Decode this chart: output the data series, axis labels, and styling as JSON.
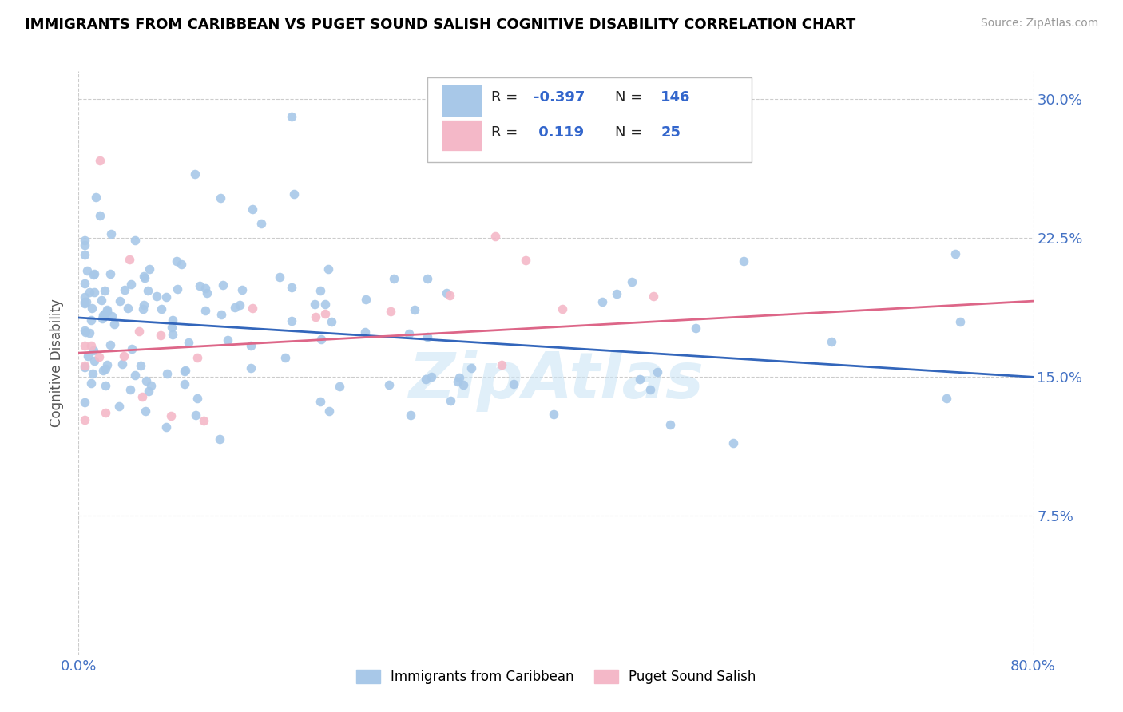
{
  "title": "IMMIGRANTS FROM CARIBBEAN VS PUGET SOUND SALISH COGNITIVE DISABILITY CORRELATION CHART",
  "source": "Source: ZipAtlas.com",
  "ylabel": "Cognitive Disability",
  "yticks": [
    0.0,
    0.075,
    0.15,
    0.225,
    0.3
  ],
  "ytick_labels": [
    "",
    "7.5%",
    "15.0%",
    "22.5%",
    "30.0%"
  ],
  "xlim": [
    0.0,
    0.8
  ],
  "ylim": [
    0.0,
    0.315
  ],
  "blue_color": "#a8c8e8",
  "pink_color": "#f4b8c8",
  "blue_line_color": "#3366bb",
  "pink_line_color": "#dd6688",
  "watermark": "ZipAtlas",
  "blue_R": -0.397,
  "blue_N": 146,
  "pink_R": 0.119,
  "pink_N": 25,
  "blue_trend_y_start": 0.182,
  "blue_trend_y_end": 0.15,
  "pink_trend_y_start": 0.163,
  "pink_trend_y_end": 0.191,
  "bottom_legend_labels": [
    "Immigrants from Caribbean",
    "Puget Sound Salish"
  ],
  "bottom_legend_colors": [
    "#a8c8e8",
    "#f4b8c8"
  ],
  "tick_color": "#4472c4",
  "grid_color": "#cccccc",
  "title_fontsize": 13,
  "source_fontsize": 10,
  "tick_fontsize": 13
}
